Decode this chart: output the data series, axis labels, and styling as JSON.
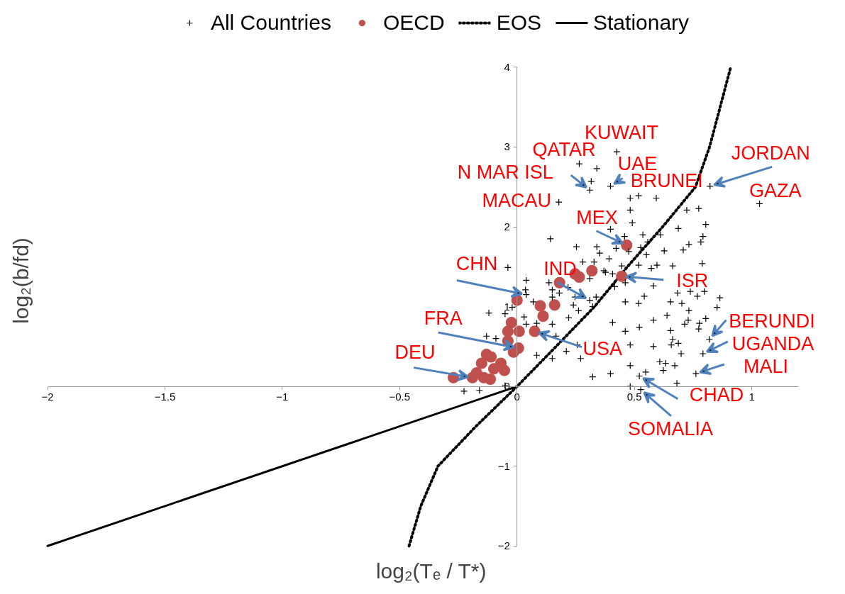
{
  "chart_data": {
    "type": "scatter",
    "xlabel": "log₂(Tₑ / T*)",
    "ylabel": "log₂(b/fd)",
    "xlim": [
      -2,
      1.2
    ],
    "xticks": [
      -2,
      -1.5,
      -1,
      -0.5,
      0,
      0.5,
      1
    ],
    "ylim": [
      -2,
      4
    ],
    "yticks": [
      -2,
      -1,
      0,
      1,
      2,
      3,
      4
    ],
    "grid": false,
    "legend": "top",
    "series": [
      {
        "name": "All Countries",
        "type": "scatter",
        "marker": "cross",
        "color": "#000000",
        "x": [
          0.265,
          0.34,
          0.316,
          0.31,
          0.178,
          0.142,
          0.253,
          0.34,
          0.352,
          0.28,
          0.328,
          0.37,
          -0.039,
          0.039,
          0.136,
          0.15,
          0.036,
          0.039,
          0.217,
          0.247,
          0.31,
          0.337,
          0.31,
          0.069,
          0.15,
          0.18,
          0.24,
          0.262,
          0.322,
          -0.021,
          -0.12,
          -0.051,
          0.03,
          0.22,
          0.039,
          0.084,
          0.15,
          0.166,
          -0.13,
          -0.09,
          0.256,
          0.084,
          0.15,
          0.271,
          0.21,
          0.322,
          -0.226,
          -0.16,
          -0.051,
          0.425,
          0.398,
          0.482,
          0.518,
          0.593,
          0.822,
          1.033,
          0.482,
          0.774,
          0.723,
          0.491,
          0.804,
          0.398,
          0.687,
          0.458,
          0.536,
          0.611,
          0.792,
          0.557,
          0.527,
          0.783,
          0.732,
          0.422,
          0.476,
          0.551,
          0.627,
          0.708,
          0.392,
          0.446,
          0.518,
          0.572,
          0.596,
          0.663,
          0.789,
          0.377,
          0.407,
          0.416,
          0.461,
          0.581,
          0.542,
          0.684,
          0.738,
          0.798,
          0.768,
          0.864,
          0.461,
          0.518,
          0.654,
          0.702,
          0.732,
          0.852,
          0.639,
          0.804,
          0.407,
          0.581,
          0.729,
          0.714,
          0.777,
          0.774,
          0.461,
          0.521,
          0.654,
          0.819,
          0.663,
          0.687,
          0.657,
          0.581,
          0.482,
          0.699,
          0.792,
          0.608,
          0.633,
          0.672,
          0.482,
          0.623,
          0.762,
          0.398,
          0.548,
          0.521,
          0.681,
          0.482,
          0.527
        ],
        "values": [
          2.79,
          2.73,
          2.57,
          2.46,
          2.31,
          1.85,
          1.75,
          1.75,
          1.67,
          1.56,
          1.56,
          1.45,
          1.49,
          1.33,
          1.3,
          1.21,
          1.21,
          1.15,
          1.24,
          1.12,
          1.35,
          1.12,
          1.08,
          1.06,
          1.12,
          1.17,
          1.02,
          0.95,
          1.0,
          0.99,
          0.92,
          0.91,
          0.87,
          0.86,
          0.78,
          0.79,
          0.78,
          0.63,
          0.63,
          0.6,
          0.52,
          0.39,
          0.35,
          0.35,
          0.44,
          0.12,
          -0.06,
          -0.05,
          0.01,
          2.94,
          2.51,
          2.36,
          2.39,
          2.36,
          2.51,
          2.29,
          2.21,
          2.23,
          2.21,
          2.05,
          2.03,
          1.97,
          1.98,
          1.88,
          1.9,
          1.9,
          1.88,
          1.81,
          1.74,
          1.81,
          1.78,
          1.73,
          1.69,
          1.65,
          1.7,
          1.71,
          1.6,
          1.51,
          1.52,
          1.48,
          1.52,
          1.51,
          1.54,
          1.43,
          1.41,
          1.25,
          1.3,
          1.26,
          1.13,
          1.17,
          1.19,
          1.19,
          1.13,
          1.11,
          1.06,
          1.04,
          1.06,
          1.04,
          0.95,
          0.99,
          0.89,
          0.85,
          0.8,
          0.83,
          0.83,
          0.78,
          0.79,
          0.72,
          0.69,
          0.74,
          0.7,
          0.59,
          0.59,
          0.54,
          0.52,
          0.5,
          0.52,
          0.41,
          0.41,
          0.31,
          0.29,
          0.26,
          0.26,
          0.2,
          0.16,
          0.16,
          0.18,
          0.13,
          0.04,
          0.0,
          -0.04
        ]
      },
      {
        "name": "OECD",
        "type": "scatter",
        "marker": "circle",
        "color": "#c0504d",
        "x": [
          0,
          0.099,
          0.16,
          0.111,
          0.075,
          0.181,
          0.247,
          0.265,
          0.319,
          -0.024,
          -0.039,
          0.009,
          -0.039,
          0.006,
          -0.015,
          -0.111,
          -0.13,
          -0.069,
          -0.151,
          -0.099,
          -0.172,
          -0.19,
          -0.142,
          -0.114,
          -0.054,
          0.467,
          0.446,
          -0.271
        ],
        "values": [
          1.08,
          1.01,
          1.02,
          0.88,
          0.69,
          1.3,
          1.41,
          1.37,
          1.45,
          0.8,
          0.69,
          0.69,
          0.57,
          0.48,
          0.43,
          0.37,
          0.4,
          0.29,
          0.29,
          0.22,
          0.17,
          0.11,
          0.11,
          0.09,
          0.2,
          1.77,
          1.38,
          0.11
        ]
      },
      {
        "name": "EOS",
        "type": "line",
        "line_style": "dotted",
        "marker": "none",
        "color": "#000000",
        "x": [
          -0.46,
          -0.41,
          -0.337,
          -0.175,
          0,
          0.166,
          0.33,
          0.47,
          0.62,
          0.76,
          0.82,
          0.865,
          0.91
        ],
        "values": [
          -2,
          -1.5,
          -1,
          -0.5,
          0,
          0.5,
          1,
          1.5,
          2,
          2.5,
          3,
          3.5,
          4
        ]
      },
      {
        "name": "Stationary",
        "type": "line",
        "line_style": "solid",
        "marker": "none",
        "color": "#000000",
        "x": [
          -2,
          0
        ],
        "values": [
          -2,
          0
        ]
      }
    ],
    "annotations": [
      {
        "text": "KUWAIT",
        "x": 0.425,
        "y": 2.94
      },
      {
        "text": "QATAR",
        "x": 0.265,
        "y": 2.79
      },
      {
        "text": "N MAR ISL",
        "x": 0.31,
        "y": 2.46
      },
      {
        "text": "UAE",
        "x": 0.398,
        "y": 2.51
      },
      {
        "text": "BRUNEI",
        "x": 0.593,
        "y": 2.36
      },
      {
        "text": "JORDAN",
        "x": 0.822,
        "y": 2.51
      },
      {
        "text": "GAZA",
        "x": 1.033,
        "y": 2.29
      },
      {
        "text": "MACAU",
        "x": 0.178,
        "y": 2.31
      },
      {
        "text": "MEX",
        "x": 0.467,
        "y": 1.77
      },
      {
        "text": "CHN",
        "x": 0.039,
        "y": 1.15
      },
      {
        "text": "IND",
        "x": 0.31,
        "y": 1.08
      },
      {
        "text": "ISR",
        "x": 0.446,
        "y": 1.38
      },
      {
        "text": "FRA",
        "x": 0.006,
        "y": 0.48
      },
      {
        "text": "DEU",
        "x": -0.19,
        "y": 0.11
      },
      {
        "text": "USA",
        "x": 0.075,
        "y": 0.69
      },
      {
        "text": "BERUNDI",
        "x": 0.819,
        "y": 0.59
      },
      {
        "text": "UGANDA",
        "x": 0.792,
        "y": 0.41
      },
      {
        "text": "MALI",
        "x": 0.762,
        "y": 0.16
      },
      {
        "text": "CHAD",
        "x": 0.521,
        "y": 0.13
      },
      {
        "text": "SOMALIA",
        "x": 0.527,
        "y": -0.04
      }
    ]
  }
}
